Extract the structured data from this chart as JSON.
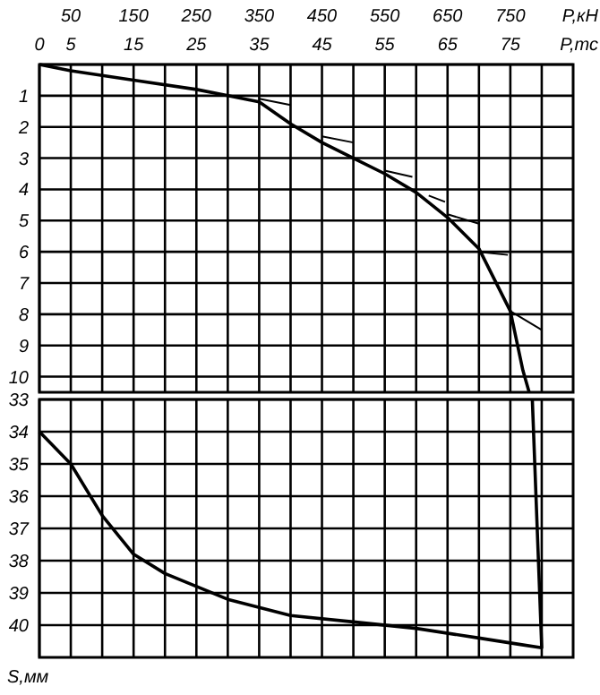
{
  "chart_data": [
    {
      "type": "line",
      "xlabel": "P,тс",
      "x2label": "P,кН",
      "xlim": [
        0,
        85
      ],
      "xticks": [
        0,
        5,
        {
          "value": 10,
          "label": null
        },
        15,
        {
          "value": 20,
          "label": null
        },
        25,
        {
          "value": 30,
          "label": null
        },
        35,
        {
          "value": 40,
          "label": null
        },
        45,
        {
          "value": 50,
          "label": null
        },
        55,
        {
          "value": 60,
          "label": null
        },
        65,
        {
          "value": 70,
          "label": null
        },
        75,
        {
          "value": 80,
          "label": null
        }
      ],
      "x2lim": [
        0,
        850
      ],
      "x2ticks": [
        50,
        150,
        250,
        350,
        450,
        550,
        650,
        750
      ],
      "ylim": [
        10.5,
        0
      ],
      "yticks": [
        {
          "value": 0,
          "label": null
        },
        1,
        2,
        3,
        4,
        5,
        6,
        7,
        8,
        9,
        10
      ],
      "grid": true,
      "series": [
        {
          "color": "#000000",
          "x": [
            0,
            5,
            15,
            25,
            30,
            35,
            40,
            45,
            50,
            55,
            60,
            65,
            70,
            75,
            77,
            78
          ],
          "values": [
            0,
            0.2,
            0.5,
            0.8,
            1.0,
            1.2,
            1.9,
            2.5,
            3.0,
            3.5,
            4.1,
            4.9,
            5.9,
            7.9,
            9.8,
            10.5
          ]
        },
        {
          "color": "#000000",
          "x": [
            35,
            40,
            null,
            45,
            50,
            null,
            55,
            59.4,
            null,
            62,
            64.6,
            null,
            65,
            70,
            null,
            70,
            74.6,
            null,
            75,
            80
          ],
          "values": [
            1.1,
            1.3,
            null,
            2.3,
            2.5,
            null,
            3.4,
            3.6,
            null,
            4.2,
            4.4,
            null,
            4.8,
            5.1,
            null,
            6.0,
            6.1,
            null,
            7.9,
            8.5
          ]
        }
      ]
    },
    {
      "type": "line",
      "ylabel": "S,мм",
      "tick_labels": "y",
      "xlim": [
        0,
        85
      ],
      "xticks": [
        0,
        5,
        10,
        15,
        20,
        25,
        30,
        35,
        40,
        45,
        50,
        55,
        60,
        65,
        70,
        75,
        80
      ],
      "ylim": [
        41,
        33
      ],
      "yticks": [
        33,
        34,
        35,
        36,
        37,
        38,
        39,
        40
      ],
      "grid": true,
      "series": [
        {
          "color": "#000000",
          "x": [
            78.5,
            80,
            76.6,
            70,
            60,
            50,
            40,
            30,
            20,
            15,
            10,
            5,
            0
          ],
          "values": [
            33,
            40.7,
            40.6,
            40.4,
            40.1,
            39.9,
            39.7,
            39.2,
            38.4,
            37.8,
            36.6,
            35,
            34
          ]
        }
      ]
    }
  ]
}
